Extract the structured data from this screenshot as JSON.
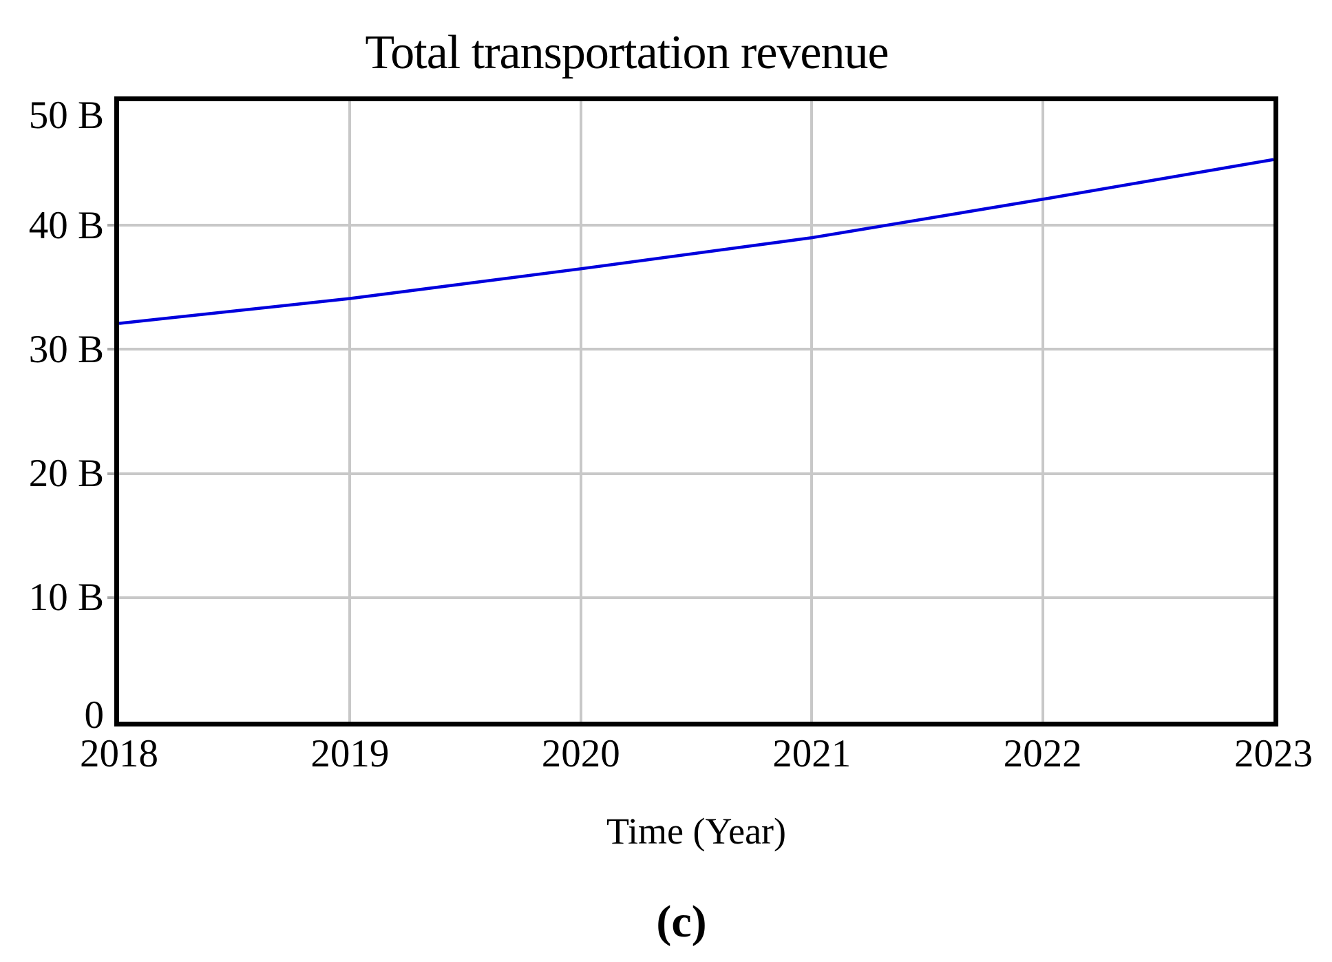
{
  "figure": {
    "caption": "(c)"
  },
  "chart_data": {
    "type": "line",
    "title": "Total transportation revenue",
    "xlabel": "Time (Year)",
    "ylabel": "",
    "x": [
      2018,
      2019,
      2020,
      2021,
      2022,
      2023
    ],
    "x_tick_labels": [
      "2018",
      "2019",
      "2020",
      "2021",
      "2022",
      "2023"
    ],
    "y_ticks": {
      "values": [
        0,
        10,
        20,
        30,
        40,
        50
      ],
      "labels": [
        "0",
        "10 B",
        "20 B",
        "30 B",
        "40 B",
        "50 B"
      ]
    },
    "xlim": [
      2018,
      2023
    ],
    "ylim": [
      0,
      50
    ],
    "grid": true,
    "legend_position": "none",
    "unit": "B",
    "series": [
      {
        "name": "Total transportation revenue",
        "values": [
          32.1,
          34.1,
          36.5,
          39.0,
          42.1,
          45.3
        ],
        "color": "#0000dd"
      }
    ],
    "colors": {
      "grid": "#c8c8c8",
      "axis_tick": "#aaaaaa",
      "border": "#000000",
      "text": "#000000",
      "background": "#ffffff"
    }
  }
}
